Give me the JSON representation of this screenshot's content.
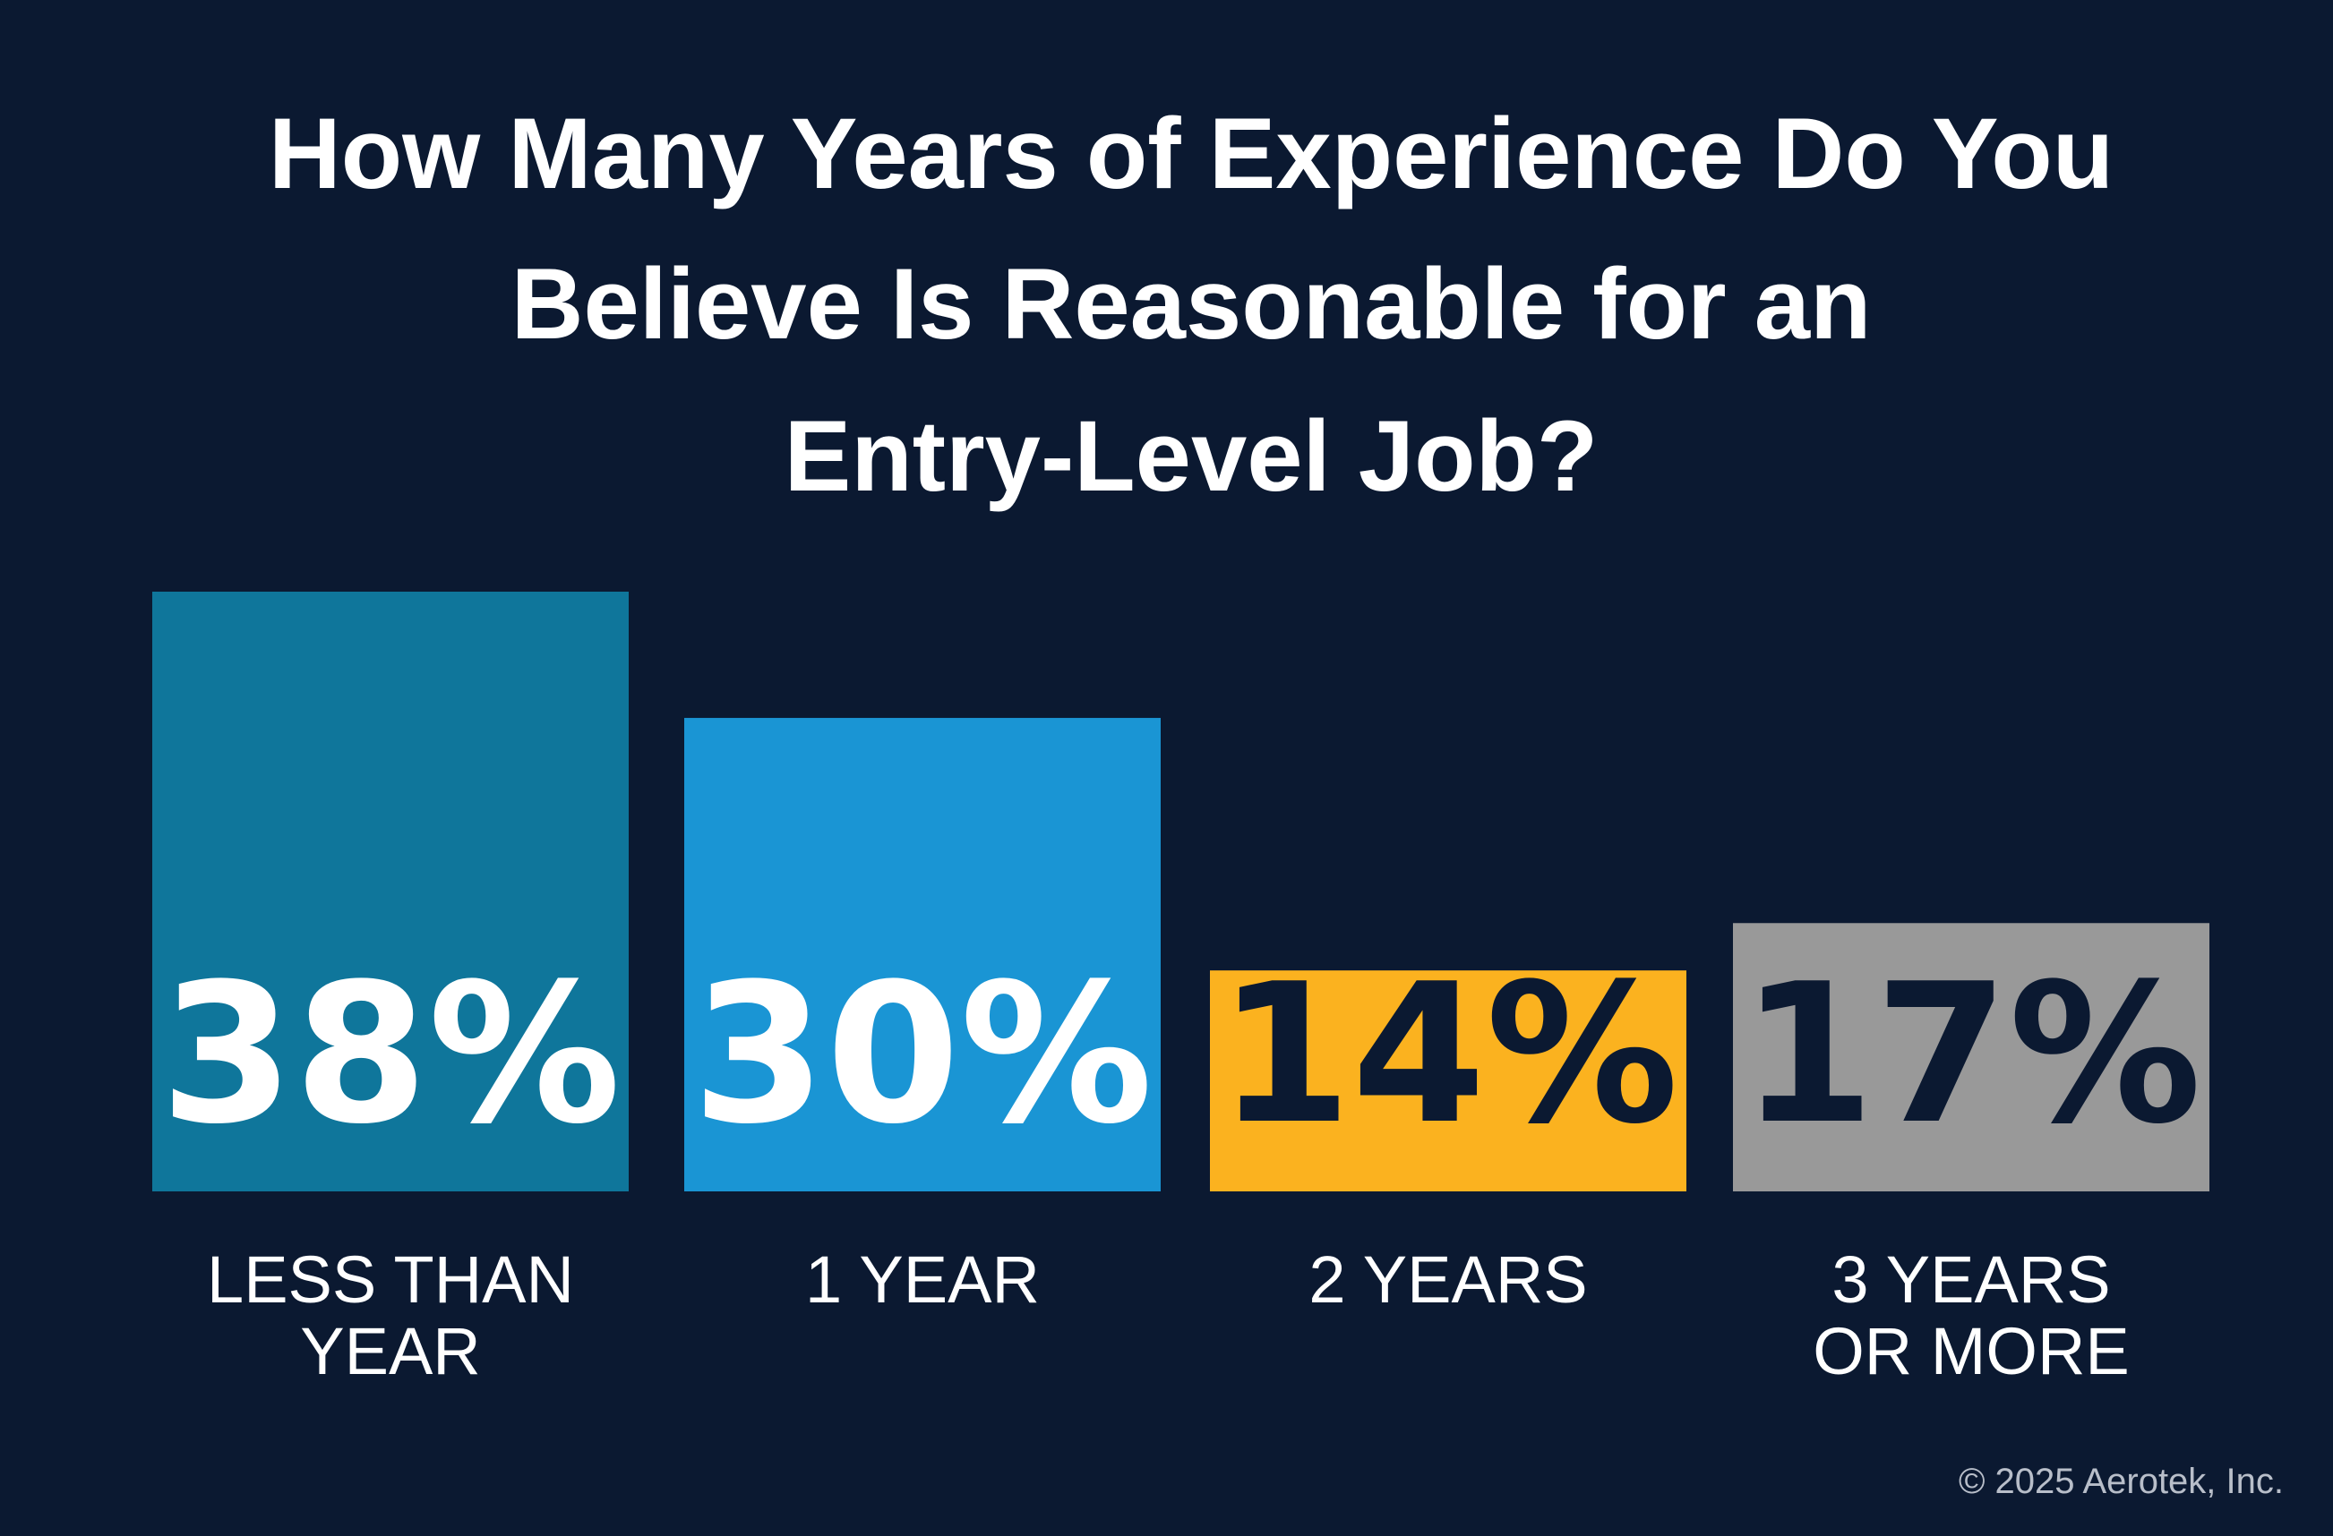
{
  "chart_data": {
    "type": "bar",
    "title_lines": [
      "How Many Years of Experience Do You",
      "Believe Is Reasonable for an",
      "Entry-Level Job?"
    ],
    "categories": [
      [
        "LESS THAN",
        "YEAR"
      ],
      [
        "1 YEAR"
      ],
      [
        "2 YEARS"
      ],
      [
        "3 YEARS",
        "OR MORE"
      ]
    ],
    "values": [
      38,
      30,
      14,
      17
    ],
    "value_labels": [
      "38%",
      "30%",
      "14%",
      "17%"
    ],
    "bar_colors": [
      "#0f769b",
      "#1a95d4",
      "#fbb21f",
      "#999999"
    ],
    "label_colors": [
      "#ffffff",
      "#ffffff",
      "#0b1931",
      "#0b1931"
    ],
    "background_color": "#0b1931",
    "ylim": [
      0,
      38
    ],
    "grid": false
  },
  "footer": {
    "copyright": "© 2025 Aerotek, Inc."
  }
}
